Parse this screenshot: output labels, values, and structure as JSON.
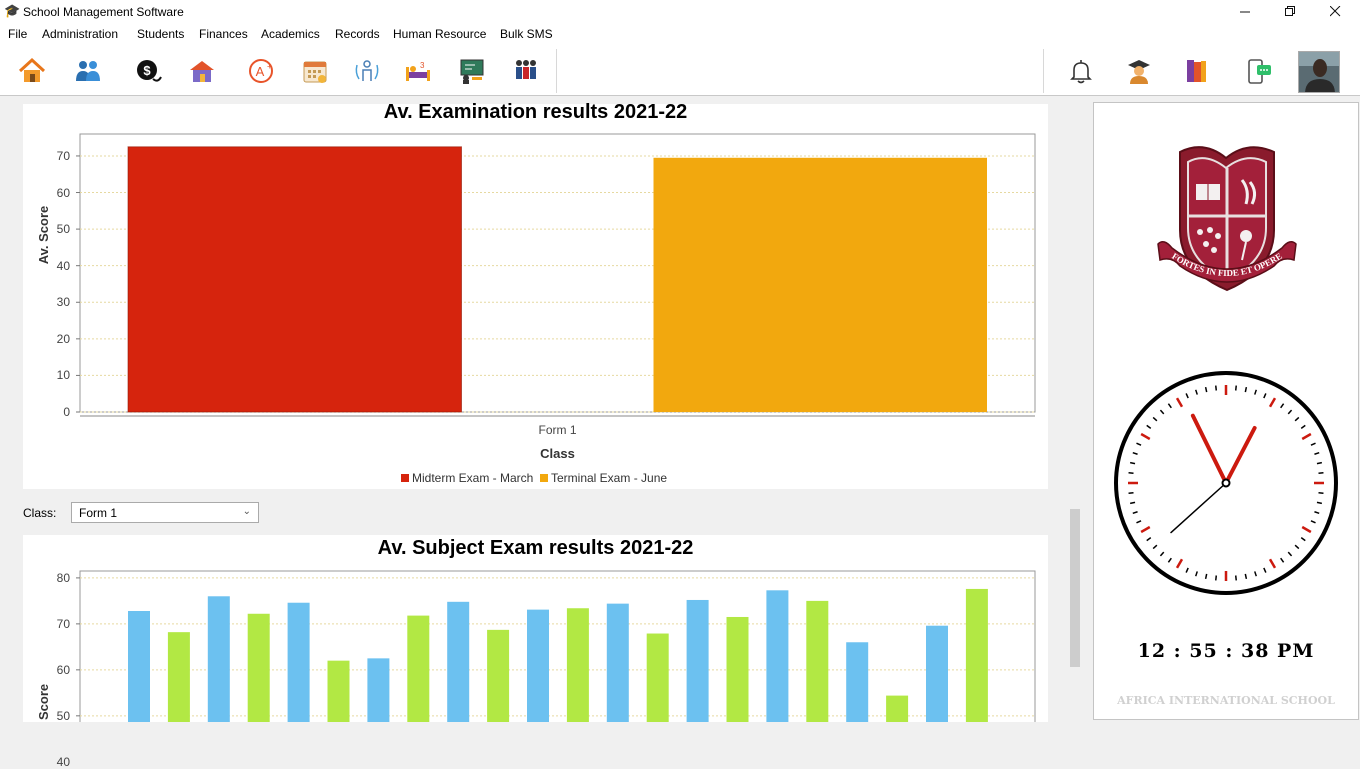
{
  "window": {
    "title": "School Management Software",
    "app_icon": "graduation-cap-icon"
  },
  "menu": [
    "File",
    "Administration",
    "Students",
    "Finances",
    "Academics",
    "Records",
    "Human Resource",
    "Bulk SMS"
  ],
  "toolbar": {
    "left_icons": [
      "home-icon",
      "users-icon",
      "finance-icon",
      "school-house-icon",
      "grade-icon",
      "calendar-icon",
      "person-sync-icon",
      "dormitory-icon",
      "teaching-board-icon",
      "staff-icon"
    ],
    "right_icons": [
      "bell-icon",
      "graduate-icon",
      "books-icon",
      "sms-phone-icon",
      "user-avatar"
    ]
  },
  "class_filter": {
    "label": "Class:",
    "selected": "Form 1"
  },
  "clock": {
    "time": "12 : 55 : 38 PM",
    "hour": 12,
    "minute": 55,
    "second": 38
  },
  "school": {
    "name": "AFRICA INTERNATIONAL SCHOOL",
    "motto": "FORTES IN FIDE ET OPERE"
  },
  "colors": {
    "midterm": "#d6240d",
    "terminal": "#f2a80e",
    "subject_a": "#6cc1f0",
    "subject_b": "#b2e844",
    "clock_red": "#cc1a0f"
  },
  "chart_data": [
    {
      "type": "bar",
      "title": "Av. Examination results 2021-22",
      "xlabel": "Class",
      "ylabel": "Av. Score",
      "categories": [
        "Form 1"
      ],
      "series": [
        {
          "name": "Midterm Exam - March",
          "values": [
            72.5
          ]
        },
        {
          "name": "Terminal Exam - June",
          "values": [
            69.5
          ]
        }
      ],
      "yticks": [
        0,
        10,
        20,
        30,
        40,
        50,
        60,
        70
      ],
      "ylim": [
        0,
        76
      ],
      "grid": true,
      "legend": "bottom-center"
    },
    {
      "type": "bar",
      "title": "Av. Subject Exam results 2021-22",
      "xlabel": "",
      "ylabel": "Score",
      "values": [
        72.8,
        68.2,
        76,
        72.2,
        74.6,
        62,
        62.5,
        71.8,
        74.8,
        68.7,
        73.1,
        73.4,
        74.4,
        67.9,
        75.2,
        71.5,
        77.3,
        75,
        66,
        54.4,
        69.6,
        77.6
      ],
      "yticks": [
        40,
        50,
        60,
        70,
        80
      ],
      "ylim": [
        38,
        81.5
      ],
      "grid": true
    }
  ]
}
